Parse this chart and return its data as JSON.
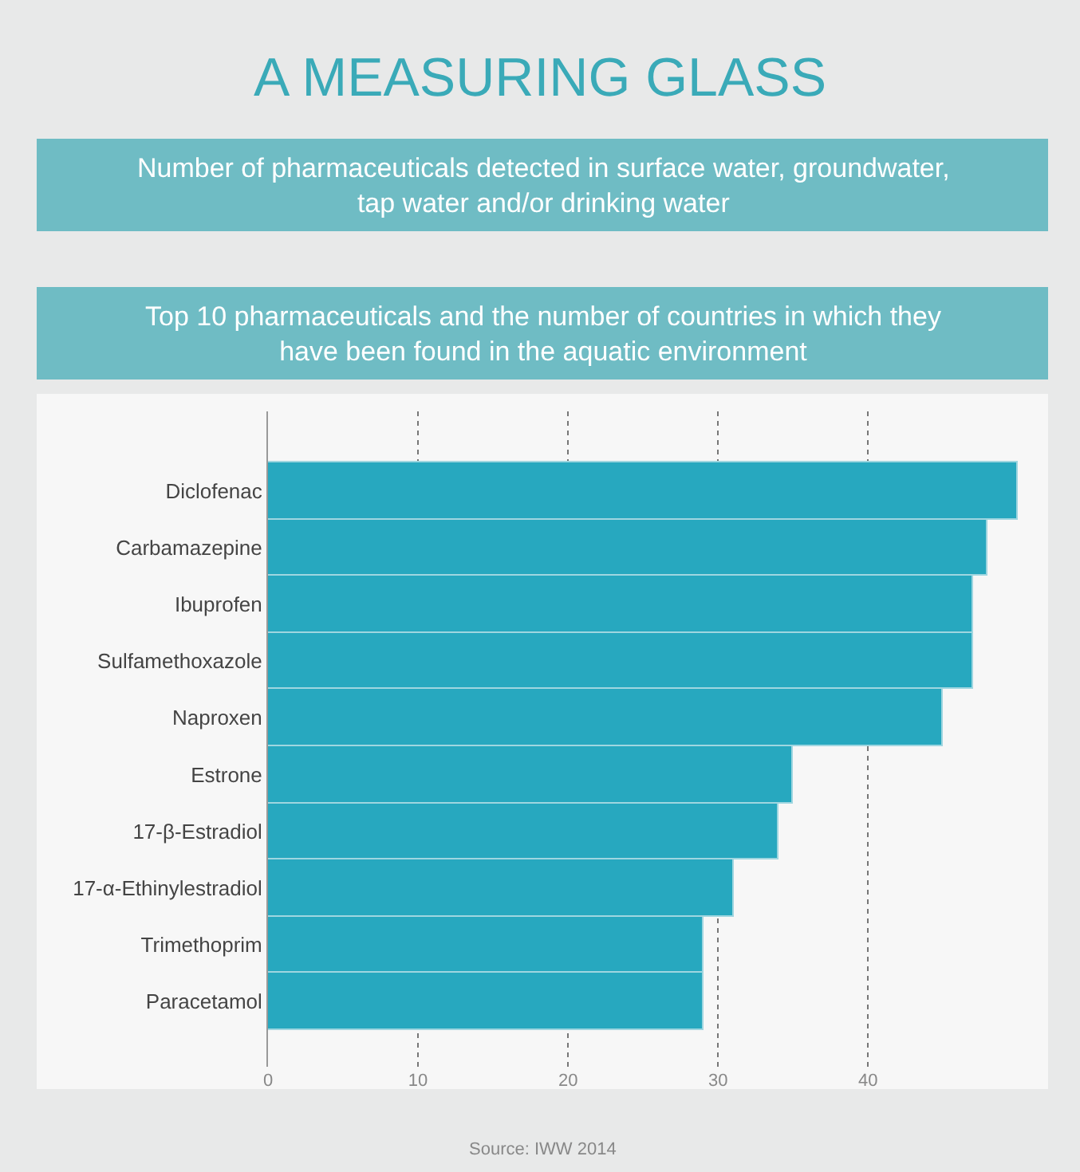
{
  "chart_data": {
    "type": "bar",
    "orientation": "horizontal",
    "title": "A MEASURING GLASS",
    "subtitle": "Number of pharmaceuticals detected in surface water, groundwater, tap water and/or drinking water",
    "annotations": [
      "Top 10 pharmaceuticals and the number of countries in which they have been found in the aquatic environment",
      "Source: IWW 2014"
    ],
    "categories": [
      "Diclofenac",
      "Carbamazepine",
      "Ibuprofen",
      "Sulfamethoxazole",
      "Naproxen",
      "Estrone",
      "17-β-Estradiol",
      "17-α-Ethinylestradiol",
      "Trimethoprim",
      "Paracetamol"
    ],
    "values": [
      50,
      48,
      47,
      47,
      45,
      35,
      34,
      31,
      29,
      29
    ],
    "color": "#27a8bf",
    "xlim": [
      0,
      52
    ],
    "xticks": [
      0,
      10,
      20,
      30,
      40
    ],
    "grid": "x",
    "legend": false
  }
}
